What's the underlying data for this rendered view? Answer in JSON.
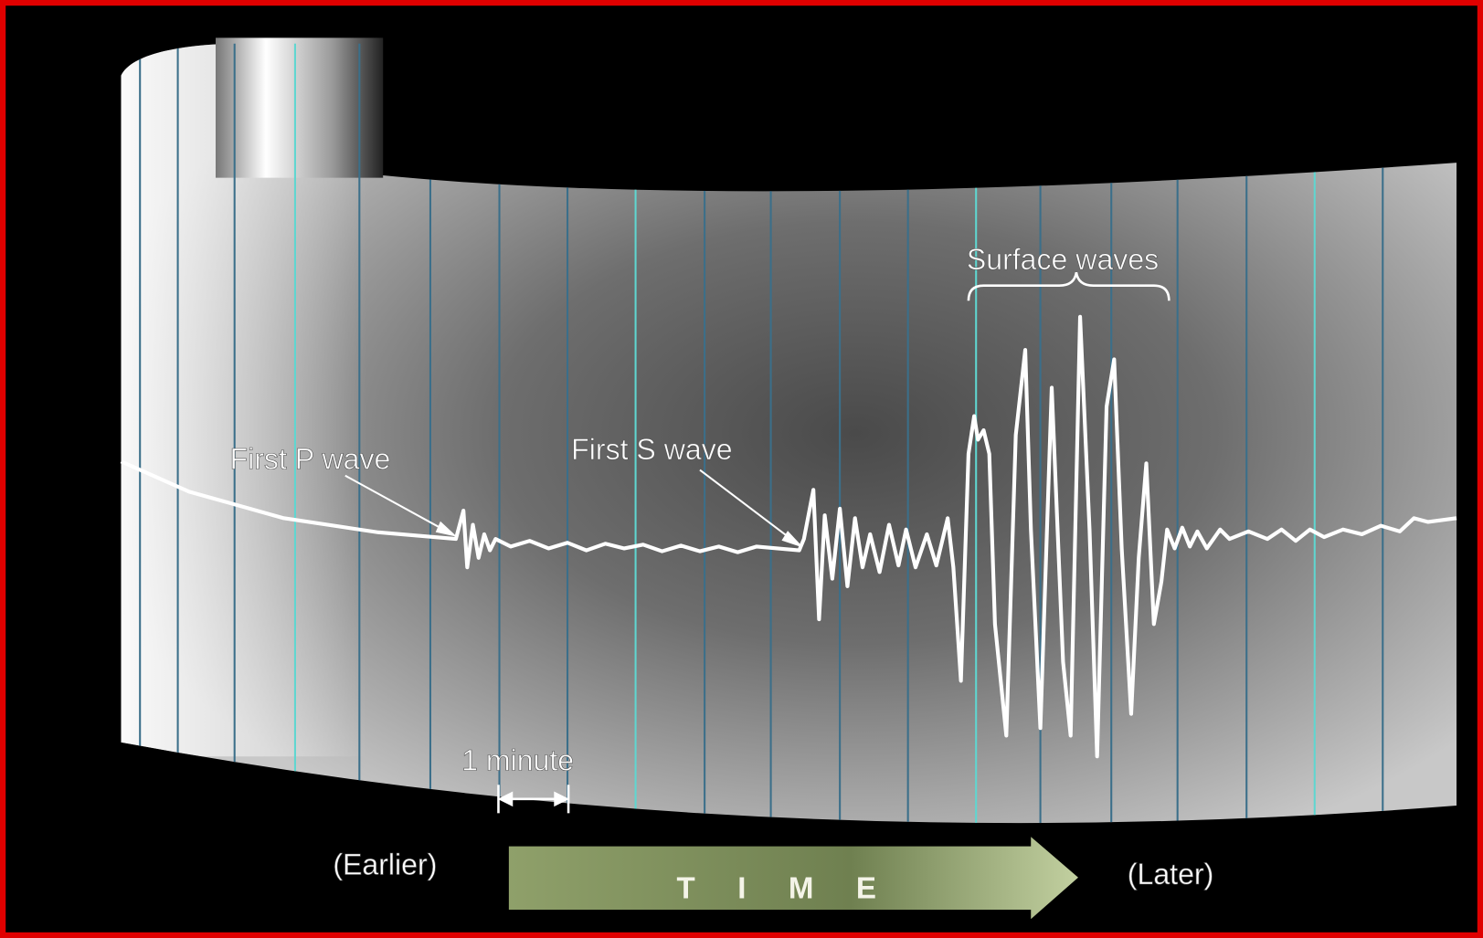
{
  "labels": {
    "p_wave": "First P wave",
    "s_wave": "First S wave",
    "surface_waves": "Surface waves",
    "scale": "1 minute",
    "earlier": "(Earlier)",
    "time": "T I M E",
    "later": "(Later)"
  }
}
